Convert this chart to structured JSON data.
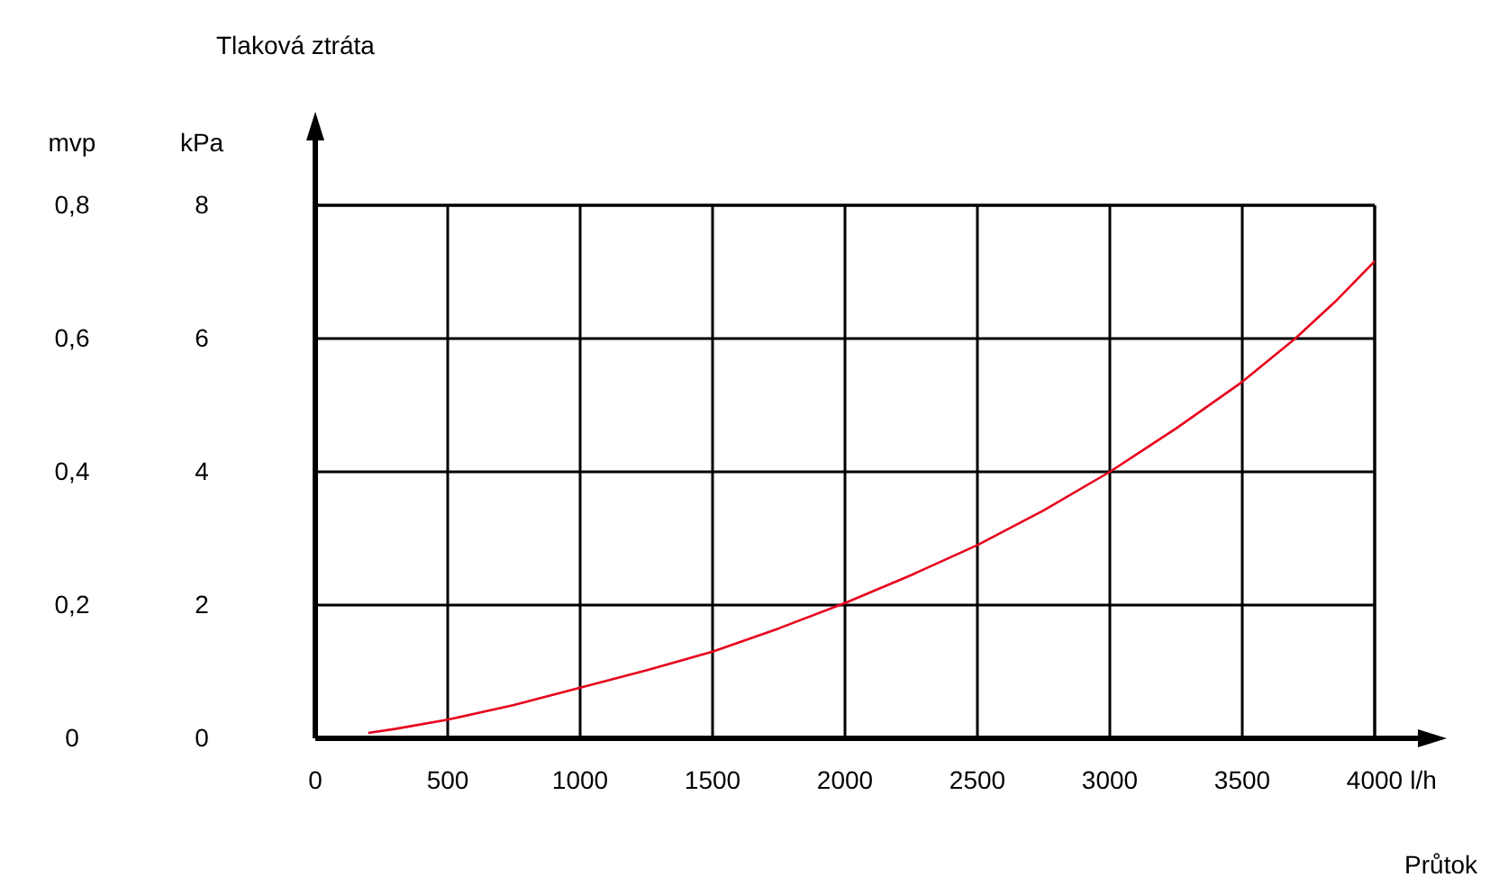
{
  "chart_data": {
    "type": "line",
    "annotations": [
      "Tlaková ztráta",
      "Průtok"
    ],
    "xlabel": "l/h",
    "ylabel": "kPa",
    "y2label": "mvp",
    "x": [
      200,
      300,
      500,
      750,
      1000,
      1250,
      1500,
      1750,
      2000,
      2250,
      2500,
      2750,
      3000,
      3250,
      3500,
      3700,
      3850,
      4000
    ],
    "series": [
      {
        "color": "#e8001c",
        "values": [
          0.08,
          0.14,
          0.28,
          0.5,
          0.76,
          1.02,
          1.3,
          1.65,
          2.03,
          2.45,
          2.9,
          3.42,
          4.0,
          4.65,
          5.35,
          6.0,
          6.55,
          7.16
        ]
      }
    ],
    "xlim": [
      0,
      4000
    ],
    "xticks": [
      0,
      500,
      1000,
      1500,
      2000,
      2500,
      3000,
      3500,
      4000
    ],
    "ylim": [
      0,
      8
    ],
    "yticks": [
      0,
      2,
      4,
      6,
      8
    ],
    "y2lim": [
      0,
      0.8
    ],
    "y2ticks": [
      {
        "value": 0,
        "label": "0"
      },
      {
        "value": 0.2,
        "label": "0,2"
      },
      {
        "value": 0.4,
        "label": "0,4"
      },
      {
        "value": 0.6,
        "label": "0,6"
      },
      {
        "value": 0.8,
        "label": "0,8"
      }
    ],
    "grid": true,
    "line_style": "solid",
    "marker": "none"
  }
}
